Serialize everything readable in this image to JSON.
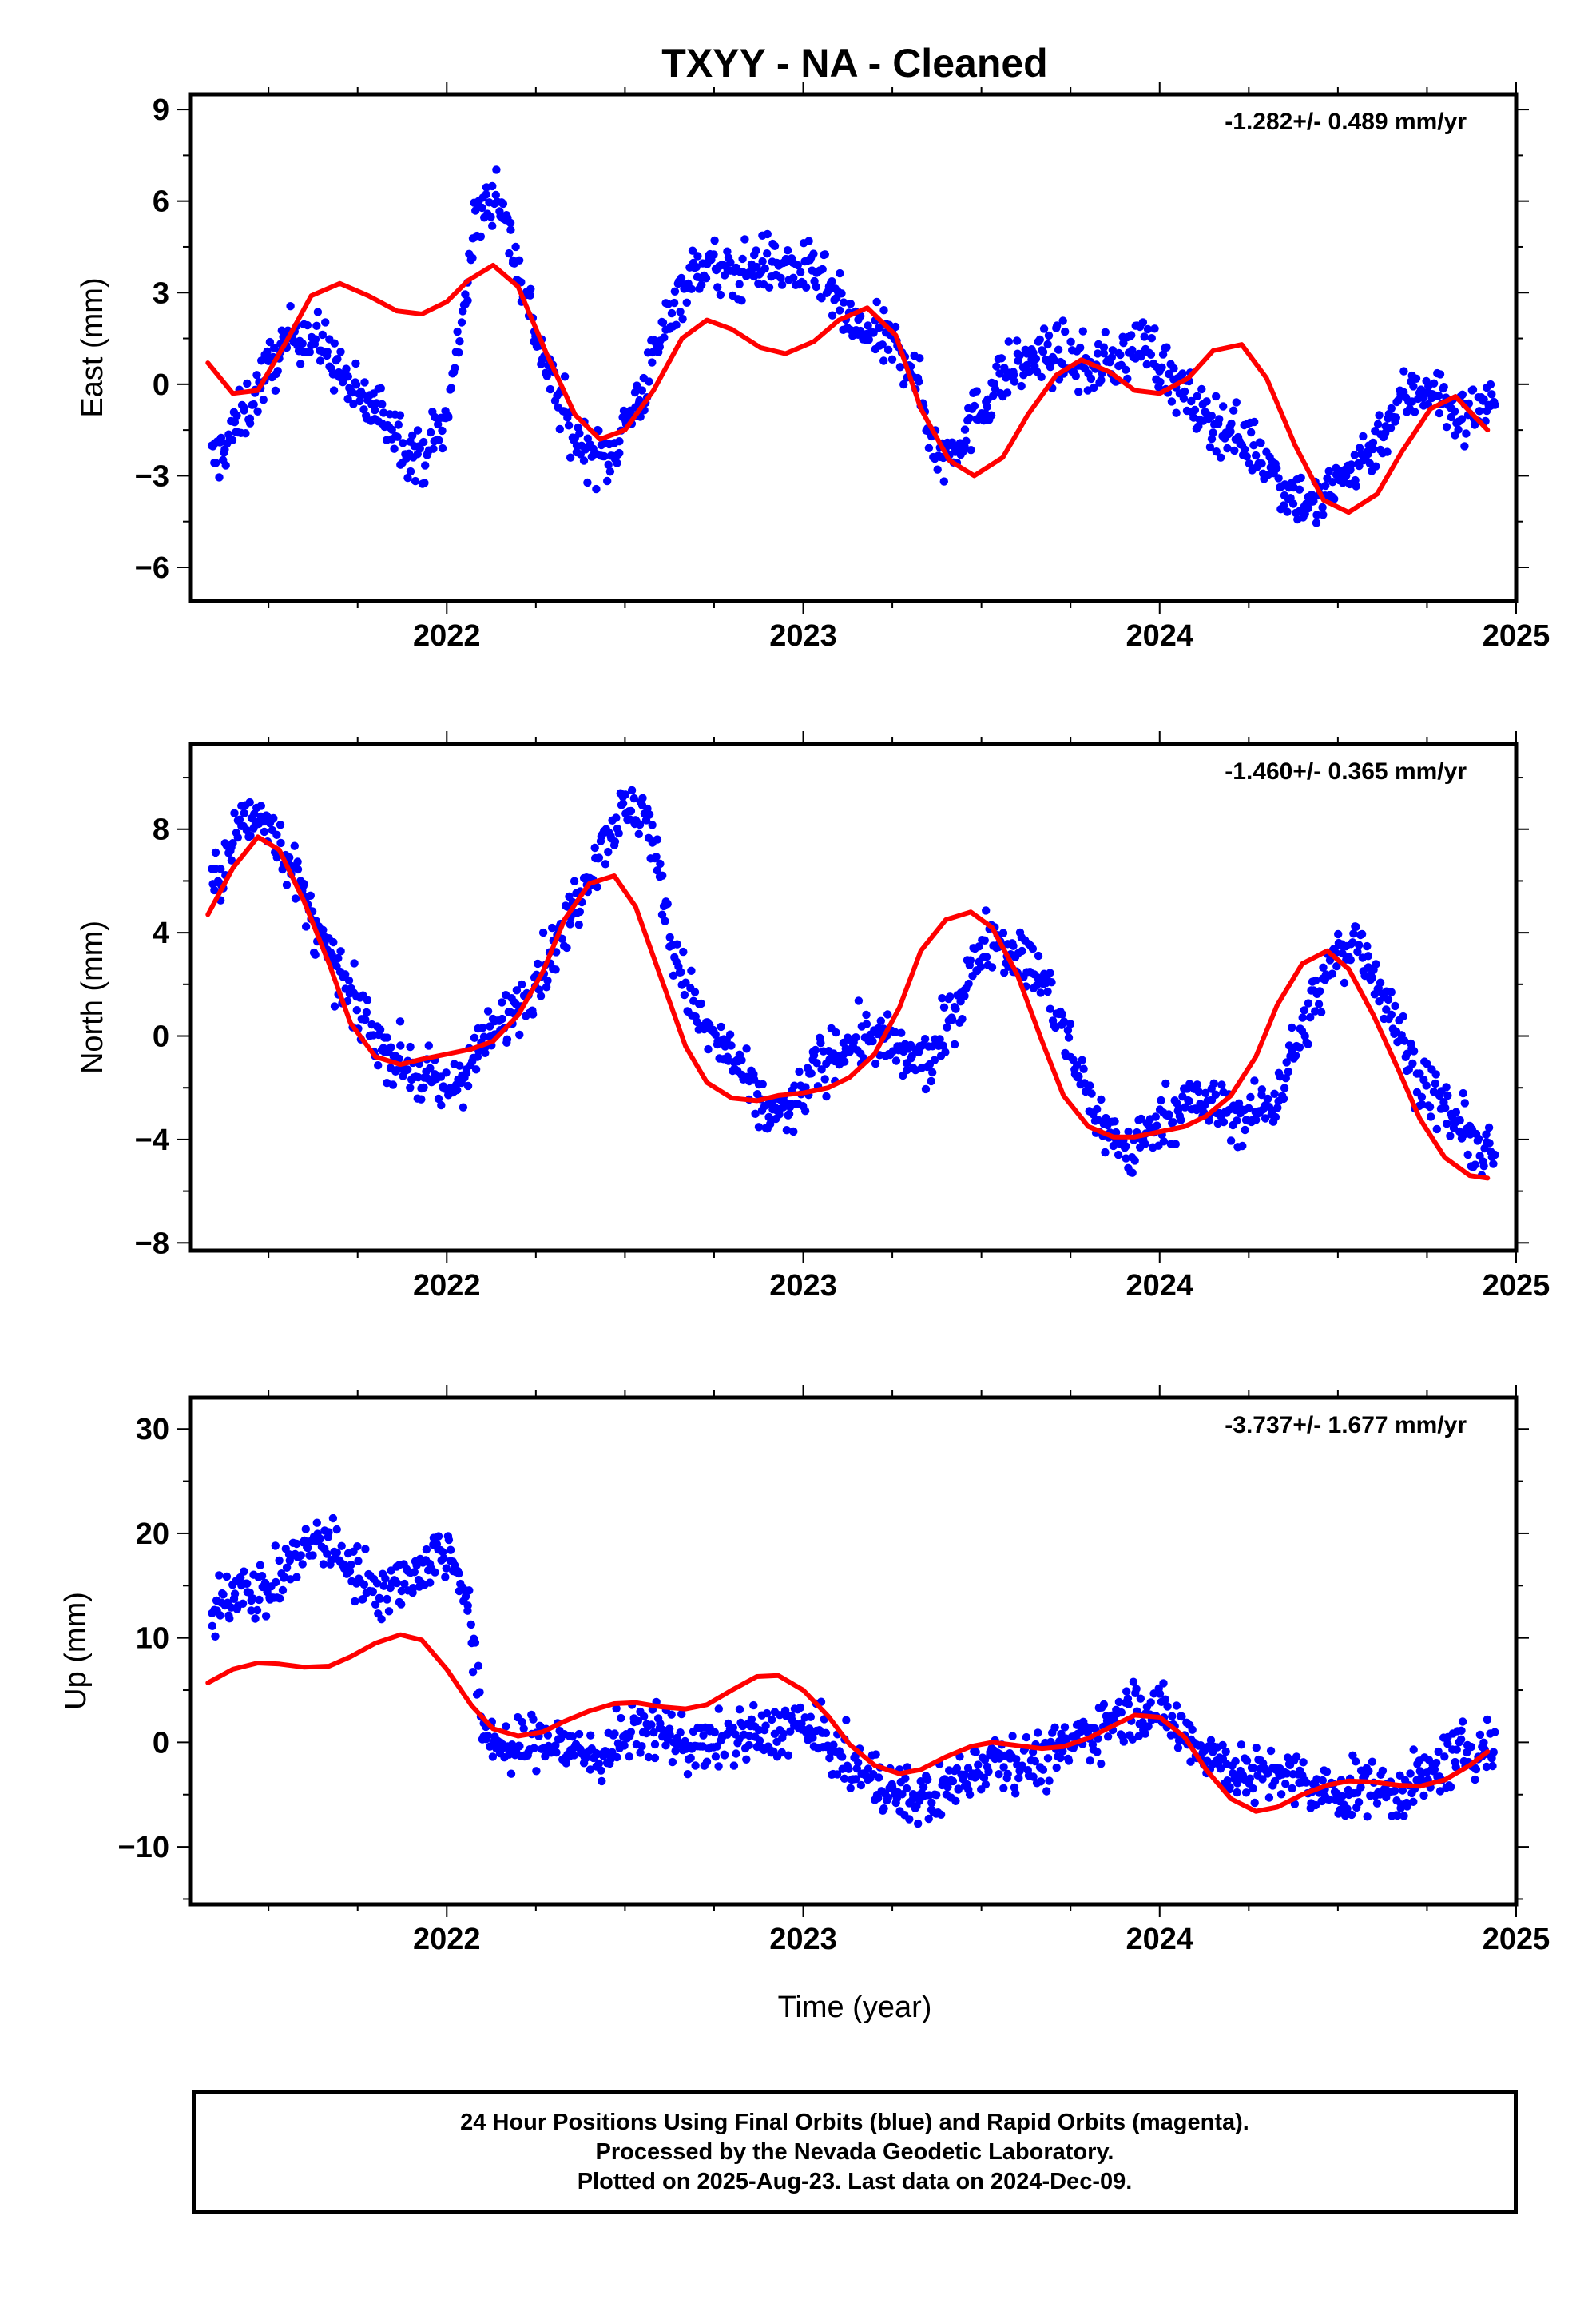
{
  "title": "TXYY  - NA - Cleaned",
  "xlabel": "Time (year)",
  "footer": {
    "line1": "24 Hour Positions Using Final Orbits (blue) and Rapid Orbits (magenta).",
    "line2": "Processed by the Nevada Geodetic Laboratory.",
    "line3": "Plotted on 2025-Aug-23. Last data on 2024-Dec-09."
  },
  "colors": {
    "data": "#0000ff",
    "model": "#ff0000",
    "axes": "#000000"
  },
  "chart_data": [
    {
      "type": "scatter",
      "ylabel": "East (mm)",
      "rate": "-1.282+/- 0.489 mm/yr",
      "xlim": [
        2021.28,
        2025.0
      ],
      "ylim": [
        -7.1,
        9.5
      ],
      "yticks": [
        -6,
        -3,
        0,
        3,
        6,
        9
      ],
      "xticks": [
        2022,
        2023,
        2024,
        2025
      ],
      "series": [
        {
          "role": "observations",
          "x": [
            2021.35,
            2021.42,
            2021.5,
            2021.58,
            2021.66,
            2021.75,
            2021.83,
            2021.92,
            2022.0,
            2022.08,
            2022.14,
            2022.2,
            2022.28,
            2022.36,
            2022.45,
            2022.55,
            2022.64,
            2022.72,
            2022.8,
            2022.88,
            2022.96,
            2023.05,
            2023.14,
            2023.22,
            2023.3,
            2023.38,
            2023.46,
            2023.55,
            2023.64,
            2023.72,
            2023.8,
            2023.88,
            2023.96,
            2024.04,
            2024.12,
            2024.2,
            2024.28,
            2024.36,
            2024.44,
            2024.52,
            2024.6,
            2024.68,
            2024.76,
            2024.84,
            2024.92
          ],
          "y": [
            -2.5,
            -1.2,
            0.5,
            1.8,
            1.2,
            -0.5,
            -1.0,
            -2.5,
            -1.2,
            5.2,
            6.5,
            3.8,
            0.5,
            -1.8,
            -2.5,
            -0.2,
            2.8,
            4.0,
            3.5,
            4.0,
            3.8,
            3.5,
            1.8,
            1.5,
            0.8,
            -2.5,
            -1.5,
            0.2,
            0.8,
            1.0,
            0.5,
            0.8,
            1.5,
            0.0,
            -1.0,
            -1.5,
            -2.2,
            -3.5,
            -4.0,
            -3.0,
            -2.0,
            -0.5,
            0.0,
            -1.2,
            -0.5
          ]
        },
        {
          "role": "model",
          "x": [
            2021.33,
            2021.4,
            2021.47,
            2021.55,
            2021.62,
            2021.7,
            2021.78,
            2021.86,
            2021.93,
            2022.0,
            2022.06,
            2022.13,
            2022.2,
            2022.28,
            2022.36,
            2022.43,
            2022.5,
            2022.58,
            2022.66,
            2022.73,
            2022.8,
            2022.88,
            2022.95,
            2023.03,
            2023.1,
            2023.18,
            2023.26,
            2023.33,
            2023.41,
            2023.48,
            2023.56,
            2023.63,
            2023.71,
            2023.78,
            2023.86,
            2023.93,
            2024.0,
            2024.08,
            2024.15,
            2024.23,
            2024.3,
            2024.38,
            2024.46,
            2024.53,
            2024.61,
            2024.68,
            2024.76,
            2024.83,
            2024.92
          ],
          "y": [
            0.7,
            -0.3,
            -0.2,
            1.4,
            2.9,
            3.3,
            2.9,
            2.4,
            2.3,
            2.7,
            3.4,
            3.9,
            3.2,
            1.0,
            -1.0,
            -1.8,
            -1.5,
            -0.2,
            1.5,
            2.1,
            1.8,
            1.2,
            1.0,
            1.4,
            2.1,
            2.5,
            1.6,
            -0.8,
            -2.5,
            -3.0,
            -2.4,
            -1.0,
            0.3,
            0.8,
            0.4,
            -0.2,
            -0.3,
            0.2,
            1.1,
            1.3,
            0.2,
            -2.0,
            -3.8,
            -4.2,
            -3.6,
            -2.2,
            -0.8,
            -0.4,
            -1.5
          ]
        }
      ]
    },
    {
      "type": "scatter",
      "ylabel": "North (mm)",
      "rate": "-1.460+/- 0.365 mm/yr",
      "xlim": [
        2021.28,
        2025.0
      ],
      "ylim": [
        -8.3,
        11.3
      ],
      "yticks": [
        -8,
        -4,
        0,
        4,
        8
      ],
      "xticks": [
        2022,
        2023,
        2024,
        2025
      ],
      "series": [
        {
          "role": "observations",
          "x": [
            2021.35,
            2021.42,
            2021.5,
            2021.58,
            2021.66,
            2021.75,
            2021.83,
            2021.92,
            2022.0,
            2022.08,
            2022.16,
            2022.24,
            2022.32,
            2022.4,
            2022.48,
            2022.56,
            2022.64,
            2022.72,
            2022.8,
            2022.88,
            2022.96,
            2023.04,
            2023.12,
            2023.2,
            2023.28,
            2023.36,
            2023.44,
            2023.52,
            2023.6,
            2023.68,
            2023.76,
            2023.84,
            2023.92,
            2024.0,
            2024.08,
            2024.16,
            2024.24,
            2024.32,
            2024.4,
            2024.48,
            2024.56,
            2024.64,
            2024.72,
            2024.8,
            2024.88,
            2024.94
          ],
          "y": [
            5.8,
            8.2,
            8.5,
            6.0,
            3.2,
            1.0,
            -0.5,
            -1.5,
            -2.2,
            -0.8,
            0.6,
            2.0,
            3.8,
            6.5,
            8.5,
            8.8,
            3.0,
            0.3,
            -0.8,
            -2.8,
            -3.0,
            -1.2,
            -0.3,
            0.0,
            -0.8,
            -1.0,
            1.5,
            4.0,
            3.2,
            2.0,
            -1.0,
            -3.5,
            -4.5,
            -3.2,
            -2.5,
            -2.8,
            -3.2,
            -2.5,
            0.2,
            2.8,
            3.8,
            1.2,
            -1.5,
            -2.8,
            -4.2,
            -4.8
          ]
        },
        {
          "role": "model",
          "x": [
            2021.33,
            2021.4,
            2021.47,
            2021.53,
            2021.6,
            2021.67,
            2021.73,
            2021.8,
            2021.87,
            2021.93,
            2022.0,
            2022.07,
            2022.13,
            2022.2,
            2022.27,
            2022.33,
            2022.4,
            2022.47,
            2022.53,
            2022.6,
            2022.67,
            2022.73,
            2022.8,
            2022.87,
            2022.93,
            2023.0,
            2023.07,
            2023.13,
            2023.2,
            2023.27,
            2023.33,
            2023.4,
            2023.47,
            2023.53,
            2023.6,
            2023.67,
            2023.73,
            2023.8,
            2023.87,
            2023.93,
            2024.0,
            2024.07,
            2024.13,
            2024.2,
            2024.27,
            2024.33,
            2024.4,
            2024.47,
            2024.53,
            2024.6,
            2024.67,
            2024.73,
            2024.8,
            2024.87,
            2024.92
          ],
          "y": [
            4.7,
            6.5,
            7.7,
            7.2,
            5.2,
            2.8,
            0.5,
            -0.8,
            -1.1,
            -0.9,
            -0.7,
            -0.5,
            -0.2,
            0.8,
            2.5,
            4.5,
            5.9,
            6.2,
            5.0,
            2.3,
            -0.4,
            -1.8,
            -2.4,
            -2.5,
            -2.3,
            -2.2,
            -2.0,
            -1.6,
            -0.7,
            1.1,
            3.3,
            4.5,
            4.8,
            4.2,
            2.4,
            -0.2,
            -2.3,
            -3.5,
            -3.9,
            -3.9,
            -3.7,
            -3.5,
            -3.1,
            -2.3,
            -0.8,
            1.2,
            2.8,
            3.3,
            2.6,
            0.8,
            -1.3,
            -3.2,
            -4.7,
            -5.4,
            -5.5
          ]
        }
      ]
    },
    {
      "type": "scatter",
      "ylabel": "Up (mm)",
      "rate": "-3.737+/- 1.677 mm/yr",
      "xlim": [
        2021.28,
        2025.0
      ],
      "ylim": [
        -15.5,
        33
      ],
      "yticks": [
        -10,
        0,
        10,
        20,
        30
      ],
      "xticks": [
        2022,
        2023,
        2024,
        2025
      ],
      "series": [
        {
          "role": "observations",
          "x": [
            2021.35,
            2021.42,
            2021.5,
            2021.58,
            2021.66,
            2021.75,
            2021.83,
            2021.92,
            2022.0,
            2022.05,
            2022.1,
            2022.18,
            2022.26,
            2022.34,
            2022.42,
            2022.5,
            2022.58,
            2022.66,
            2022.74,
            2022.82,
            2022.9,
            2022.98,
            2023.06,
            2023.14,
            2023.22,
            2023.3,
            2023.38,
            2023.46,
            2023.54,
            2023.62,
            2023.7,
            2023.78,
            2023.86,
            2023.94,
            2024.02,
            2024.1,
            2024.18,
            2024.26,
            2024.34,
            2024.42,
            2024.5,
            2024.58,
            2024.66,
            2024.74,
            2024.82,
            2024.9
          ],
          "y": [
            12.0,
            15.5,
            14.0,
            18.0,
            19.5,
            16.0,
            14.5,
            16.5,
            18.5,
            15.0,
            1.5,
            -1.0,
            0.5,
            -0.5,
            -1.5,
            0.5,
            1.5,
            0.0,
            -0.5,
            0.8,
            0.5,
            2.0,
            0.0,
            -2.5,
            -4.0,
            -5.5,
            -5.0,
            -3.0,
            -1.0,
            -2.0,
            -1.5,
            0.5,
            2.0,
            3.5,
            2.5,
            0.0,
            -2.0,
            -3.5,
            -2.8,
            -4.5,
            -5.0,
            -4.0,
            -5.0,
            -3.5,
            -1.5,
            -0.5
          ]
        },
        {
          "role": "model",
          "x": [
            2021.33,
            2021.4,
            2021.47,
            2021.53,
            2021.6,
            2021.67,
            2021.73,
            2021.8,
            2021.87,
            2021.93,
            2022.0,
            2022.07,
            2022.13,
            2022.2,
            2022.27,
            2022.33,
            2022.4,
            2022.47,
            2022.53,
            2022.6,
            2022.67,
            2022.73,
            2022.8,
            2022.87,
            2022.93,
            2023.0,
            2023.07,
            2023.13,
            2023.2,
            2023.27,
            2023.33,
            2023.4,
            2023.47,
            2023.53,
            2023.6,
            2023.67,
            2023.73,
            2023.8,
            2023.87,
            2023.93,
            2024.0,
            2024.07,
            2024.13,
            2024.2,
            2024.27,
            2024.33,
            2024.4,
            2024.47,
            2024.53,
            2024.6,
            2024.67,
            2024.73,
            2024.8,
            2024.87,
            2024.92
          ],
          "y": [
            5.7,
            7.0,
            7.6,
            7.5,
            7.2,
            7.3,
            8.2,
            9.5,
            10.3,
            9.8,
            7.0,
            3.5,
            1.3,
            0.6,
            1.0,
            2.0,
            3.0,
            3.7,
            3.8,
            3.4,
            3.2,
            3.6,
            5.0,
            6.3,
            6.4,
            5.0,
            2.5,
            -0.2,
            -2.2,
            -3.0,
            -2.6,
            -1.4,
            -0.4,
            0.0,
            -0.3,
            -0.6,
            -0.4,
            0.4,
            1.6,
            2.6,
            2.4,
            0.5,
            -2.6,
            -5.4,
            -6.6,
            -6.2,
            -5.0,
            -4.1,
            -3.7,
            -3.8,
            -4.1,
            -4.2,
            -3.6,
            -2.2,
            -0.9
          ]
        }
      ]
    }
  ]
}
